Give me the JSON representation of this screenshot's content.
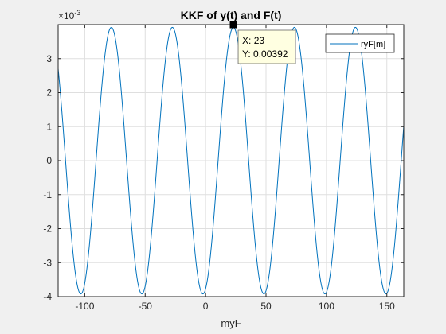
{
  "chart_data": {
    "type": "line",
    "title": "KKF of y(t) and F(t)",
    "xlabel": "myF",
    "ylabel": "",
    "xlim": [
      -122,
      164
    ],
    "ylim": [
      -0.004,
      0.004
    ],
    "y_exponent_label": "×10",
    "y_exponent_power": "-3",
    "x_ticks": [
      -100,
      -50,
      0,
      50,
      100,
      150
    ],
    "x_tick_labels": [
      "-100",
      "-50",
      "0",
      "50",
      "100",
      "150"
    ],
    "y_ticks": [
      -4,
      -3,
      -2,
      -1,
      0,
      1,
      2,
      3
    ],
    "y_tick_labels": [
      "-4",
      "-3",
      "-2",
      "-1",
      "0",
      "1",
      "2",
      "3"
    ],
    "grid": true,
    "legend_position": "top-right",
    "series": [
      {
        "name": "ryF[m]",
        "color": "#0072bd",
        "model": "sinusoid",
        "amplitude": 0.00392,
        "period": 50.5,
        "peak_x": 23,
        "x_start": -122,
        "x_end": 164
      }
    ],
    "datatip": {
      "x": 23,
      "y": 0.00392,
      "x_label": "X: 23",
      "y_label": "Y: 0.00392"
    }
  },
  "colors": {
    "figure_bg": "#f0f0f0",
    "axes_bg": "#ffffff",
    "line": "#0072bd",
    "grid": "#dfdfdf",
    "tip_bg": "#ffffe1"
  }
}
